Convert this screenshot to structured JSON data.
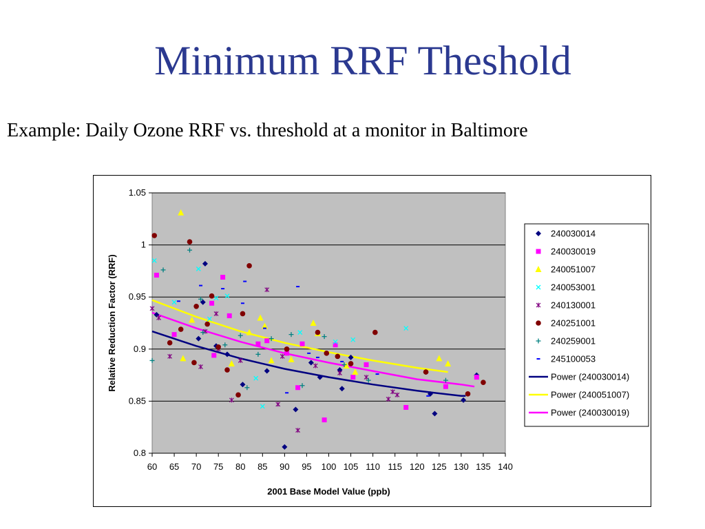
{
  "slide": {
    "title": "Minimum RRF Theshold",
    "subtitle": "Example:  Daily Ozone RRF vs. threshold at a monitor in Baltimore"
  },
  "chart_data": {
    "type": "scatter",
    "xlabel": "2001 Base Model Value (ppb)",
    "ylabel": "Relative Reduction Factor (RRF)",
    "xlim": [
      60,
      140
    ],
    "ylim": [
      0.8,
      1.05
    ],
    "xticks": [
      60,
      65,
      70,
      75,
      80,
      85,
      90,
      95,
      100,
      105,
      110,
      115,
      120,
      125,
      130,
      135,
      140
    ],
    "yticks": [
      0.8,
      0.85,
      0.9,
      0.95,
      1,
      1.05
    ],
    "ytick_labels": [
      "0.8",
      "0.85",
      "0.9",
      "0.95",
      "1",
      "1.05"
    ],
    "grid": "horizontal major gridlines",
    "plot_background": "#C0C0C0",
    "legend_position": "right",
    "series": [
      {
        "name": "240030014",
        "marker": "diamond",
        "color": "#000080",
        "points": [
          [
            61,
            0.933
          ],
          [
            70.5,
            0.91
          ],
          [
            71.5,
            0.945
          ],
          [
            72,
            0.982
          ],
          [
            74.5,
            0.903
          ],
          [
            77,
            0.895
          ],
          [
            80.5,
            0.866
          ],
          [
            86,
            0.879
          ],
          [
            90,
            0.806
          ],
          [
            92.5,
            0.842
          ],
          [
            96,
            0.887
          ],
          [
            98,
            0.873
          ],
          [
            102.5,
            0.88
          ],
          [
            103,
            0.862
          ],
          [
            105,
            0.892
          ],
          [
            122,
            0.878
          ],
          [
            123,
            0.857
          ],
          [
            124,
            0.838
          ],
          [
            130.5,
            0.851
          ],
          [
            133.5,
            0.875
          ]
        ]
      },
      {
        "name": "240030019",
        "marker": "square",
        "color": "#FF00FF",
        "points": [
          [
            61,
            0.971
          ],
          [
            65,
            0.914
          ],
          [
            73.5,
            0.944
          ],
          [
            74,
            0.894
          ],
          [
            76,
            0.969
          ],
          [
            77.5,
            0.932
          ],
          [
            84,
            0.905
          ],
          [
            86,
            0.908
          ],
          [
            90.5,
            0.896
          ],
          [
            93,
            0.863
          ],
          [
            94,
            0.905
          ],
          [
            99,
            0.832
          ],
          [
            101.5,
            0.904
          ],
          [
            105.5,
            0.873
          ],
          [
            108.5,
            0.885
          ],
          [
            117.5,
            0.844
          ],
          [
            126.5,
            0.864
          ],
          [
            133.5,
            0.873
          ]
        ]
      },
      {
        "name": "240051007",
        "marker": "triangle",
        "color": "#FFFF00",
        "points": [
          [
            66.5,
            1.031
          ],
          [
            67,
            0.891
          ],
          [
            69,
            0.928
          ],
          [
            78,
            0.886
          ],
          [
            82,
            0.916
          ],
          [
            84.5,
            0.93
          ],
          [
            85.5,
            0.922
          ],
          [
            87,
            0.889
          ],
          [
            91.5,
            0.89
          ],
          [
            96.5,
            0.925
          ],
          [
            97.5,
            0.915
          ],
          [
            104,
            0.884
          ],
          [
            106,
            0.878
          ],
          [
            125,
            0.891
          ],
          [
            127,
            0.886
          ]
        ]
      },
      {
        "name": "240053001",
        "marker": "x",
        "color": "#00FFFF",
        "points": [
          [
            60.5,
            0.985
          ],
          [
            65,
            0.945
          ],
          [
            70.5,
            0.977
          ],
          [
            73,
            0.929
          ],
          [
            74.5,
            0.949
          ],
          [
            77,
            0.951
          ],
          [
            83.5,
            0.872
          ],
          [
            85,
            0.845
          ],
          [
            93.5,
            0.916
          ],
          [
            101.5,
            0.907
          ],
          [
            105.5,
            0.909
          ],
          [
            117.5,
            0.92
          ]
        ]
      },
      {
        "name": "240130001",
        "marker": "star",
        "color": "#800080",
        "points": [
          [
            60,
            0.939
          ],
          [
            61.5,
            0.93
          ],
          [
            64,
            0.893
          ],
          [
            71,
            0.883
          ],
          [
            72,
            0.917
          ],
          [
            74.5,
            0.934
          ],
          [
            75,
            0.9
          ],
          [
            78,
            0.851
          ],
          [
            80,
            0.889
          ],
          [
            86,
            0.957
          ],
          [
            88.5,
            0.847
          ],
          [
            89.5,
            0.893
          ],
          [
            93,
            0.822
          ],
          [
            97,
            0.884
          ],
          [
            102.5,
            0.877
          ],
          [
            108.5,
            0.873
          ],
          [
            113.5,
            0.852
          ],
          [
            114.5,
            0.859
          ],
          [
            115.5,
            0.856
          ]
        ]
      },
      {
        "name": "240251001",
        "marker": "circle",
        "color": "#800000",
        "points": [
          [
            60.5,
            1.009
          ],
          [
            64,
            0.906
          ],
          [
            66.5,
            0.919
          ],
          [
            68.5,
            1.003
          ],
          [
            69.5,
            0.887
          ],
          [
            70,
            0.941
          ],
          [
            72.5,
            0.924
          ],
          [
            73.5,
            0.951
          ],
          [
            75,
            0.902
          ],
          [
            77,
            0.88
          ],
          [
            79.5,
            0.856
          ],
          [
            80.5,
            0.934
          ],
          [
            82,
            0.98
          ],
          [
            90.5,
            0.9
          ],
          [
            97.5,
            0.916
          ],
          [
            99.5,
            0.896
          ],
          [
            102,
            0.893
          ],
          [
            105,
            0.886
          ],
          [
            110.5,
            0.916
          ],
          [
            122,
            0.878
          ],
          [
            131.5,
            0.857
          ],
          [
            135,
            0.868
          ]
        ]
      },
      {
        "name": "240259001",
        "marker": "plus",
        "color": "#008080",
        "points": [
          [
            60,
            0.889
          ],
          [
            62.5,
            0.976
          ],
          [
            68.5,
            0.995
          ],
          [
            71,
            0.948
          ],
          [
            71.5,
            0.916
          ],
          [
            76.5,
            0.904
          ],
          [
            80,
            0.913
          ],
          [
            81.5,
            0.863
          ],
          [
            84,
            0.895
          ],
          [
            87,
            0.91
          ],
          [
            91.5,
            0.914
          ],
          [
            94,
            0.865
          ],
          [
            99,
            0.912
          ],
          [
            103.5,
            0.885
          ],
          [
            109,
            0.87
          ],
          [
            126.5,
            0.87
          ]
        ]
      },
      {
        "name": "245100053",
        "marker": "dash",
        "color": "#0000FF",
        "points": [
          [
            66,
            0.946
          ],
          [
            71,
            0.961
          ],
          [
            76,
            0.958
          ],
          [
            80.5,
            0.944
          ],
          [
            81,
            0.965
          ],
          [
            85.5,
            0.92
          ],
          [
            90.5,
            0.858
          ],
          [
            93,
            0.96
          ],
          [
            95.5,
            0.896
          ],
          [
            97.5,
            0.892
          ],
          [
            103,
            0.888
          ],
          [
            111,
            0.876
          ],
          [
            122.5,
            0.855
          ]
        ]
      },
      {
        "name": "Power (240030014)",
        "type": "line",
        "color": "#000080",
        "points": [
          [
            60,
            0.917
          ],
          [
            70,
            0.903
          ],
          [
            80,
            0.891
          ],
          [
            90,
            0.881
          ],
          [
            100,
            0.873
          ],
          [
            110,
            0.866
          ],
          [
            120,
            0.86
          ],
          [
            130,
            0.855
          ],
          [
            131,
            0.855
          ]
        ]
      },
      {
        "name": "Power (240051007)",
        "type": "line",
        "color": "#FFFF00",
        "points": [
          [
            60,
            0.947
          ],
          [
            70,
            0.931
          ],
          [
            80,
            0.917
          ],
          [
            90,
            0.906
          ],
          [
            100,
            0.897
          ],
          [
            110,
            0.889
          ],
          [
            120,
            0.882
          ],
          [
            127,
            0.878
          ]
        ]
      },
      {
        "name": "Power (240030019)",
        "type": "line",
        "color": "#FF00FF",
        "points": [
          [
            60,
            0.935
          ],
          [
            70,
            0.92
          ],
          [
            80,
            0.907
          ],
          [
            90,
            0.896
          ],
          [
            100,
            0.887
          ],
          [
            110,
            0.879
          ],
          [
            120,
            0.871
          ],
          [
            130,
            0.866
          ],
          [
            133,
            0.864
          ]
        ]
      }
    ]
  }
}
